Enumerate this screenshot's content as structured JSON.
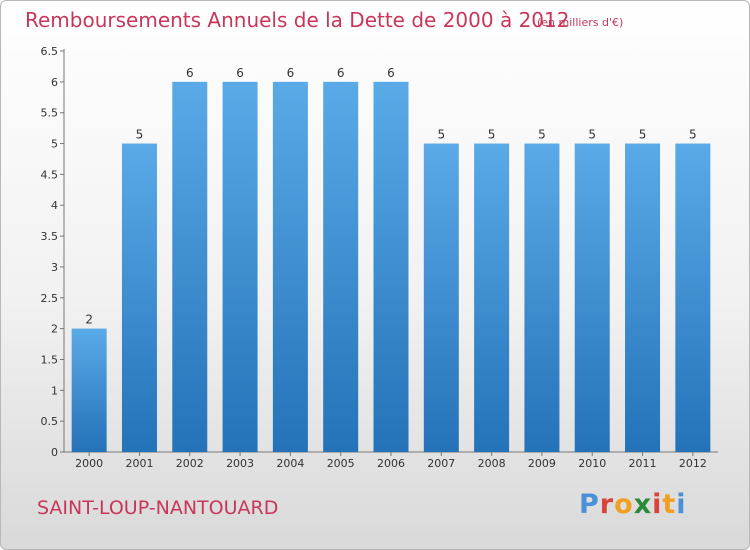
{
  "header": {
    "title": "Remboursements Annuels de la Dette de 2000 à 2012",
    "unit": "(en milliers d'€)"
  },
  "footer": {
    "commune": "SAINT-LOUP-NANTOUARD",
    "brand": "Proxiti"
  },
  "colors": {
    "title": "#c8375a",
    "bar_light": "#5aaae8",
    "bar_dark": "#2472b8",
    "brand_letters": [
      "#4a90d9",
      "#d8443a",
      "#f0a020",
      "#2a8a3a",
      "#d8443a",
      "#f0a020",
      "#4a90d9"
    ]
  },
  "chart_data": {
    "type": "bar",
    "categories": [
      "2000",
      "2001",
      "2002",
      "2003",
      "2004",
      "2005",
      "2006",
      "2007",
      "2008",
      "2009",
      "2010",
      "2011",
      "2012"
    ],
    "values": [
      2,
      5,
      6,
      6,
      6,
      6,
      6,
      5,
      5,
      5,
      5,
      5,
      5
    ],
    "data_labels": [
      "2",
      "5",
      "6",
      "6",
      "6",
      "6",
      "6",
      "5",
      "5",
      "5",
      "5",
      "5",
      "5"
    ],
    "title": "Remboursements Annuels de la Dette de 2000 à 2012",
    "ylim": [
      0,
      6.5
    ],
    "yticks": [
      0,
      0.5,
      1,
      1.5,
      2,
      2.5,
      3,
      3.5,
      4,
      4.5,
      5,
      5.5,
      6,
      6.5
    ],
    "ytick_labels": [
      "0",
      "0.5",
      "1",
      "1.5",
      "2",
      "2.5",
      "3",
      "3.5",
      "4",
      "4.5",
      "5",
      "5.5",
      "6",
      "6.5"
    ],
    "grid": false
  }
}
